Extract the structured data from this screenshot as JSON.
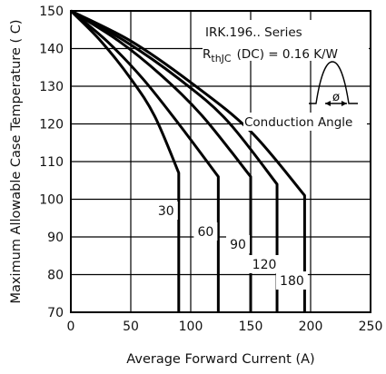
{
  "chart_data": {
    "type": "line",
    "xlabel": "Average Forward Current (A)",
    "ylabel": "Maximum Allowable Case Temperature ( C)",
    "xlim": [
      0,
      250
    ],
    "ylim": [
      70,
      150
    ],
    "xticks": [
      "0",
      "50",
      "100",
      "150",
      "200",
      "250"
    ],
    "yticks": [
      "70",
      "80",
      "90",
      "100",
      "110",
      "120",
      "130",
      "140",
      "150"
    ],
    "grid": true,
    "annotations": {
      "series_title": "IRK.196.. Series",
      "rthjc_prefix": "R",
      "rthjc_sub": "thJC",
      "rthjc_value": "(DC) = 0.16 K/W",
      "phi_symbol": "ø",
      "conduction_angle": "Conduction Angle"
    },
    "series": [
      {
        "label": "30",
        "points": [
          [
            0,
            150
          ],
          [
            25,
            142
          ],
          [
            50,
            132
          ],
          [
            70,
            122
          ],
          [
            90,
            107
          ],
          [
            90,
            70
          ]
        ]
      },
      {
        "label": "60",
        "points": [
          [
            0,
            150
          ],
          [
            30,
            142
          ],
          [
            60,
            132
          ],
          [
            90,
            120
          ],
          [
            123,
            106
          ],
          [
            123,
            70
          ]
        ]
      },
      {
        "label": "90",
        "points": [
          [
            0,
            150
          ],
          [
            40,
            142
          ],
          [
            75,
            133
          ],
          [
            110,
            122
          ],
          [
            150,
            106
          ],
          [
            150,
            70
          ]
        ]
      },
      {
        "label": "120",
        "points": [
          [
            0,
            150
          ],
          [
            45,
            142
          ],
          [
            90,
            132
          ],
          [
            130,
            121
          ],
          [
            172,
            104
          ],
          [
            172,
            70
          ]
        ]
      },
      {
        "label": "180",
        "points": [
          [
            0,
            150
          ],
          [
            50,
            142
          ],
          [
            100,
            131
          ],
          [
            150,
            118
          ],
          [
            195,
            101
          ],
          [
            195,
            70
          ]
        ]
      }
    ]
  }
}
